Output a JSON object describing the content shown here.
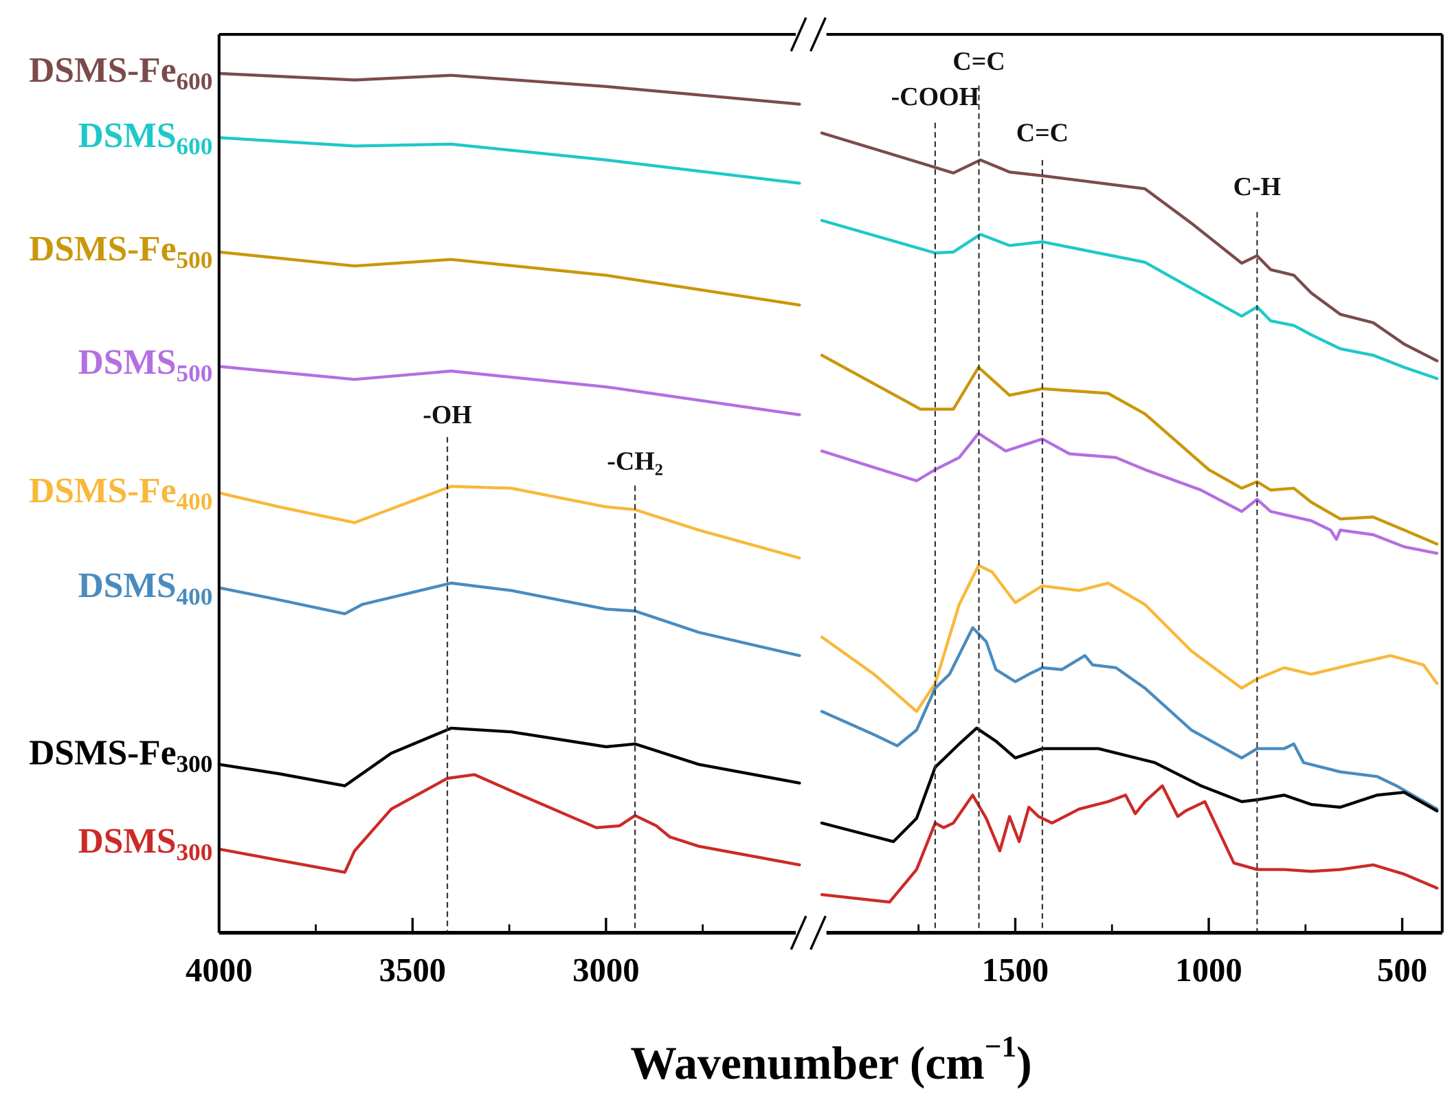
{
  "chart_data": {
    "type": "line",
    "title": "",
    "xlabel": "Wavenumber (cm",
    "xlabel_sup": "−1",
    "xlabel_end": ")",
    "ylabel": "",
    "x_axis": {
      "reversed": true,
      "broken": true,
      "segments": [
        [
          4000,
          2500
        ],
        [
          2000,
          400
        ]
      ],
      "major_ticks": [
        4000,
        3500,
        3000,
        1500,
        1000,
        500
      ],
      "minor_ticks": [
        3750,
        3250,
        2750,
        1750,
        1250,
        750
      ],
      "tick_labels": [
        "4000",
        "3500",
        "3000",
        "1500",
        "1000",
        "500"
      ]
    },
    "ylim": [
      0,
      966
    ],
    "y_units": "arbitrary (stacked transmittance)",
    "grid": false,
    "annotations": [
      {
        "text": "-OH",
        "sub": "",
        "x": 3410
      },
      {
        "text": "-CH",
        "sub": "2",
        "x": 2925
      },
      {
        "text": "-COOH",
        "sub": "",
        "x": 1707
      },
      {
        "text": "C=C",
        "sub": "",
        "x": 1594
      },
      {
        "text": "C=C",
        "sub": "",
        "x": 1430
      },
      {
        "text": "C-H",
        "sub": "",
        "x": 875
      }
    ],
    "series": [
      {
        "base": "DSMS-Fe",
        "sub": "600",
        "color": "#7B4B4B",
        "left": [
          [
            4000,
            924
          ],
          [
            3650,
            917
          ],
          [
            3400,
            922
          ],
          [
            3000,
            910
          ],
          [
            2500,
            891
          ]
        ],
        "right": [
          [
            2000,
            860
          ],
          [
            1707,
            823
          ],
          [
            1660,
            817
          ],
          [
            1590,
            831
          ],
          [
            1515,
            818
          ],
          [
            1430,
            814
          ],
          [
            1165,
            800
          ],
          [
            1045,
            763
          ],
          [
            915,
            720
          ],
          [
            875,
            728
          ],
          [
            840,
            713
          ],
          [
            780,
            707
          ],
          [
            735,
            688
          ],
          [
            660,
            665
          ],
          [
            575,
            656
          ],
          [
            495,
            633
          ],
          [
            410,
            615
          ]
        ]
      },
      {
        "base": "DSMS",
        "sub": "600",
        "color": "#1FC8C8",
        "left": [
          [
            4000,
            855
          ],
          [
            3650,
            846
          ],
          [
            3400,
            848
          ],
          [
            3000,
            831
          ],
          [
            2500,
            806
          ]
        ],
        "right": [
          [
            2000,
            766
          ],
          [
            1707,
            731
          ],
          [
            1660,
            732
          ],
          [
            1590,
            751
          ],
          [
            1515,
            739
          ],
          [
            1430,
            743
          ],
          [
            1165,
            721
          ],
          [
            1045,
            693
          ],
          [
            915,
            663
          ],
          [
            875,
            673
          ],
          [
            840,
            658
          ],
          [
            780,
            653
          ],
          [
            735,
            643
          ],
          [
            660,
            628
          ],
          [
            575,
            621
          ],
          [
            495,
            608
          ],
          [
            410,
            596
          ]
        ]
      },
      {
        "base": "DSMS-Fe",
        "sub": "500",
        "color": "#C9970A",
        "left": [
          [
            4000,
            732
          ],
          [
            3650,
            717
          ],
          [
            3400,
            724
          ],
          [
            3000,
            707
          ],
          [
            2500,
            675
          ]
        ],
        "right": [
          [
            2000,
            621
          ],
          [
            1745,
            563
          ],
          [
            1660,
            563
          ],
          [
            1595,
            608
          ],
          [
            1515,
            578
          ],
          [
            1430,
            585
          ],
          [
            1260,
            580
          ],
          [
            1165,
            558
          ],
          [
            1000,
            498
          ],
          [
            915,
            478
          ],
          [
            875,
            485
          ],
          [
            840,
            476
          ],
          [
            780,
            478
          ],
          [
            735,
            463
          ],
          [
            660,
            445
          ],
          [
            575,
            447
          ],
          [
            495,
            433
          ],
          [
            410,
            418
          ]
        ]
      },
      {
        "base": "DSMS",
        "sub": "500",
        "color": "#B36FE0",
        "left": [
          [
            4000,
            609
          ],
          [
            3650,
            595
          ],
          [
            3400,
            604
          ],
          [
            3000,
            587
          ],
          [
            2500,
            557
          ]
        ],
        "right": [
          [
            2000,
            518
          ],
          [
            1755,
            486
          ],
          [
            1707,
            498
          ],
          [
            1645,
            511
          ],
          [
            1595,
            537
          ],
          [
            1525,
            518
          ],
          [
            1430,
            531
          ],
          [
            1360,
            515
          ],
          [
            1240,
            511
          ],
          [
            1165,
            498
          ],
          [
            1020,
            476
          ],
          [
            915,
            453
          ],
          [
            875,
            466
          ],
          [
            840,
            453
          ],
          [
            735,
            443
          ],
          [
            685,
            433
          ],
          [
            670,
            423
          ],
          [
            660,
            433
          ],
          [
            575,
            428
          ],
          [
            495,
            415
          ],
          [
            410,
            408
          ]
        ]
      },
      {
        "base": "DSMS-Fe",
        "sub": "400",
        "color": "#F9B83A",
        "left": [
          [
            4000,
            473
          ],
          [
            3845,
            458
          ],
          [
            3650,
            441
          ],
          [
            3400,
            480
          ],
          [
            3245,
            478
          ],
          [
            3000,
            458
          ],
          [
            2925,
            455
          ],
          [
            2760,
            433
          ],
          [
            2500,
            403
          ]
        ],
        "right": [
          [
            2000,
            318
          ],
          [
            1865,
            278
          ],
          [
            1755,
            238
          ],
          [
            1707,
            268
          ],
          [
            1645,
            353
          ],
          [
            1595,
            395
          ],
          [
            1560,
            388
          ],
          [
            1500,
            355
          ],
          [
            1430,
            373
          ],
          [
            1335,
            368
          ],
          [
            1260,
            376
          ],
          [
            1165,
            353
          ],
          [
            1045,
            303
          ],
          [
            915,
            263
          ],
          [
            875,
            273
          ],
          [
            805,
            285
          ],
          [
            735,
            278
          ],
          [
            635,
            288
          ],
          [
            530,
            298
          ],
          [
            445,
            288
          ],
          [
            410,
            268
          ]
        ]
      },
      {
        "base": "DSMS",
        "sub": "400",
        "color": "#4A8BBE",
        "left": [
          [
            4000,
            371
          ],
          [
            3845,
            358
          ],
          [
            3675,
            343
          ],
          [
            3630,
            353
          ],
          [
            3400,
            376
          ],
          [
            3245,
            368
          ],
          [
            3000,
            348
          ],
          [
            2925,
            346
          ],
          [
            2760,
            323
          ],
          [
            2500,
            298
          ]
        ],
        "right": [
          [
            2000,
            238
          ],
          [
            1865,
            213
          ],
          [
            1805,
            201
          ],
          [
            1755,
            218
          ],
          [
            1707,
            263
          ],
          [
            1670,
            278
          ],
          [
            1610,
            328
          ],
          [
            1575,
            313
          ],
          [
            1550,
            283
          ],
          [
            1500,
            270
          ],
          [
            1465,
            278
          ],
          [
            1430,
            285
          ],
          [
            1380,
            283
          ],
          [
            1320,
            298
          ],
          [
            1300,
            288
          ],
          [
            1240,
            285
          ],
          [
            1165,
            263
          ],
          [
            1045,
            218
          ],
          [
            915,
            188
          ],
          [
            875,
            198
          ],
          [
            805,
            198
          ],
          [
            780,
            203
          ],
          [
            755,
            183
          ],
          [
            660,
            173
          ],
          [
            565,
            168
          ],
          [
            515,
            158
          ],
          [
            410,
            133
          ]
        ]
      },
      {
        "base": "DSMS-Fe",
        "sub": "300",
        "color": "#000000",
        "left": [
          [
            4000,
            181
          ],
          [
            3845,
            171
          ],
          [
            3675,
            158
          ],
          [
            3555,
            193
          ],
          [
            3400,
            220
          ],
          [
            3245,
            216
          ],
          [
            3000,
            200
          ],
          [
            2925,
            203
          ],
          [
            2760,
            181
          ],
          [
            2500,
            161
          ]
        ],
        "right": [
          [
            2000,
            118
          ],
          [
            1815,
            98
          ],
          [
            1755,
            123
          ],
          [
            1707,
            178
          ],
          [
            1645,
            203
          ],
          [
            1600,
            220
          ],
          [
            1550,
            206
          ],
          [
            1500,
            188
          ],
          [
            1430,
            198
          ],
          [
            1285,
            198
          ],
          [
            1140,
            183
          ],
          [
            1020,
            158
          ],
          [
            915,
            141
          ],
          [
            875,
            143
          ],
          [
            805,
            148
          ],
          [
            735,
            138
          ],
          [
            660,
            135
          ],
          [
            565,
            148
          ],
          [
            495,
            151
          ],
          [
            410,
            131
          ]
        ]
      },
      {
        "base": "DSMS",
        "sub": "300",
        "color": "#CC2A27",
        "left": [
          [
            4000,
            90
          ],
          [
            3845,
            78
          ],
          [
            3675,
            65
          ],
          [
            3650,
            88
          ],
          [
            3555,
            133
          ],
          [
            3410,
            166
          ],
          [
            3340,
            170
          ],
          [
            3220,
            148
          ],
          [
            3025,
            113
          ],
          [
            2965,
            115
          ],
          [
            2925,
            126
          ],
          [
            2870,
            115
          ],
          [
            2835,
            103
          ],
          [
            2760,
            93
          ],
          [
            2500,
            73
          ]
        ],
        "right": [
          [
            2000,
            41
          ],
          [
            1825,
            33
          ],
          [
            1755,
            68
          ],
          [
            1707,
            118
          ],
          [
            1685,
            113
          ],
          [
            1660,
            118
          ],
          [
            1610,
            148
          ],
          [
            1575,
            123
          ],
          [
            1540,
            88
          ],
          [
            1515,
            125
          ],
          [
            1490,
            98
          ],
          [
            1465,
            135
          ],
          [
            1440,
            125
          ],
          [
            1405,
            118
          ],
          [
            1335,
            133
          ],
          [
            1260,
            141
          ],
          [
            1215,
            148
          ],
          [
            1190,
            128
          ],
          [
            1165,
            141
          ],
          [
            1120,
            158
          ],
          [
            1080,
            125
          ],
          [
            1060,
            131
          ],
          [
            1010,
            141
          ],
          [
            935,
            75
          ],
          [
            875,
            68
          ],
          [
            805,
            68
          ],
          [
            735,
            66
          ],
          [
            660,
            68
          ],
          [
            575,
            73
          ],
          [
            495,
            63
          ],
          [
            410,
            48
          ]
        ]
      }
    ]
  }
}
